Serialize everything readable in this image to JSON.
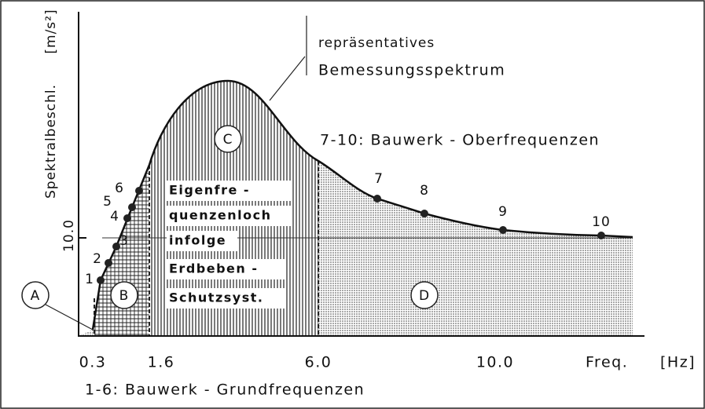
{
  "title": {
    "line1": "repräsentatives",
    "line2": "Bemessungsspektrum"
  },
  "upper_note": "7-10: Bauwerk - Oberfrequenzen",
  "lower_note": "1-6: Bauwerk - Grundfrequenzen",
  "y_axis": {
    "label": "Spektralbeschl.",
    "unit": "[m/s²]",
    "tick": "10.0"
  },
  "x_axis": {
    "label": "Freq.",
    "unit": "[Hz]",
    "ticks": [
      "0.3",
      "1.6",
      "6.0",
      "10.0"
    ]
  },
  "regions": [
    "A",
    "B",
    "C",
    "D"
  ],
  "gap_note": [
    "Eigenfre -",
    "quenzenloch",
    "infolge",
    "Erdbeben -",
    "Schutzsyst."
  ],
  "points": [
    "1",
    "2",
    "3",
    "4",
    "5",
    "6",
    "7",
    "8",
    "9",
    "10"
  ]
}
